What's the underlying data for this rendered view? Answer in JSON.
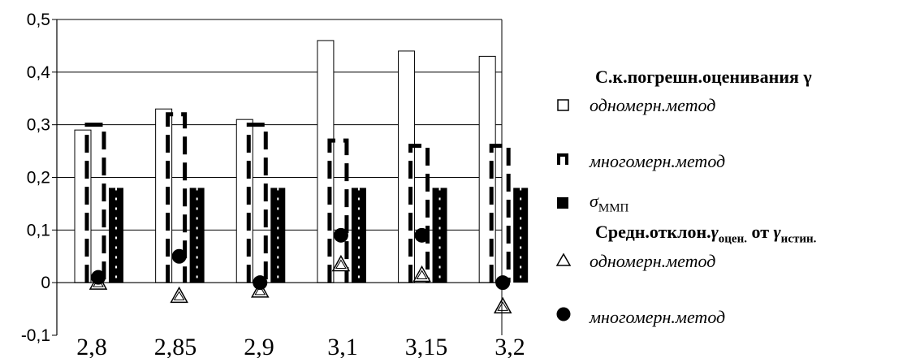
{
  "chart_data": {
    "type": "bar",
    "categories": [
      "2,8",
      "2,85",
      "2,9",
      "3,1",
      "3,15",
      "3,2"
    ],
    "ylim": [
      -0.1,
      0.5
    ],
    "yticks": [
      "-0,1",
      "0",
      "0,1",
      "0,2",
      "0,3",
      "0,4",
      "0,5"
    ],
    "grid": true,
    "legend_position": "right",
    "series": [
      {
        "name": "одномерн.метод",
        "kind": "bar",
        "style": "outline",
        "values": [
          0.29,
          0.33,
          0.31,
          0.46,
          0.44,
          0.43
        ]
      },
      {
        "name": "многомерн.метод",
        "kind": "bar",
        "style": "dashed",
        "values": [
          0.3,
          0.32,
          0.3,
          0.27,
          0.26,
          0.26
        ]
      },
      {
        "name": "σММП",
        "kind": "bar",
        "style": "dashed-filled",
        "values": [
          0.18,
          0.18,
          0.18,
          0.18,
          0.18,
          0.18
        ]
      },
      {
        "name": "одномерн.метод",
        "kind": "marker",
        "marker": "triangle",
        "values": [
          0.0,
          -0.025,
          -0.015,
          0.035,
          0.015,
          -0.045
        ]
      },
      {
        "name": "многомерн.метод",
        "kind": "marker",
        "marker": "circle",
        "values": [
          0.01,
          0.05,
          0.0,
          0.09,
          0.09,
          0.0
        ]
      }
    ]
  },
  "legend": {
    "title1": "С.к.погрешн.оценивания γ",
    "item1": "одномерн.метод",
    "item2": "многомерн.метод",
    "item3_main": "σ",
    "item3_sub": "ММП",
    "title2_a": "Средн.отклон.",
    "title2_g1": "γ",
    "title2_sub1": "оцен.",
    "title2_b": " от ",
    "title2_g2": "γ",
    "title2_sub2": "истин.",
    "item4": "одномерн.метод",
    "item5": "многомерн.метод"
  }
}
